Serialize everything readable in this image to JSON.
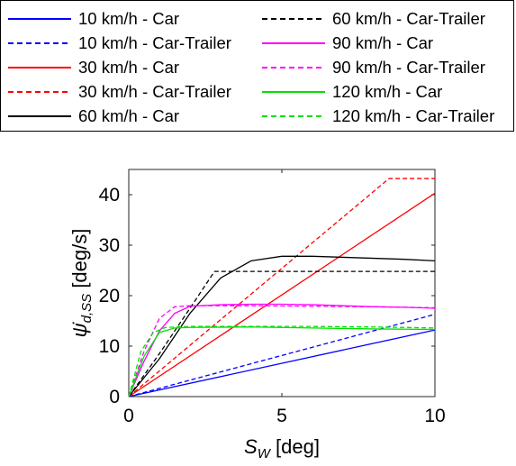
{
  "chart_data": {
    "type": "line",
    "xlabel_symbol": "S",
    "xlabel_sub": "W",
    "xlabel_unit": "[deg]",
    "ylabel_symbol": "ψ̇",
    "ylabel_sub": "d,SS",
    "ylabel_unit": "[deg/s]",
    "xlim": [
      0,
      10
    ],
    "ylim": [
      0,
      45
    ],
    "xticks": [
      "0",
      "5",
      "10"
    ],
    "yticks": [
      "0",
      "10",
      "20",
      "30",
      "40"
    ],
    "grid": false,
    "legend_placement": "top",
    "series": [
      {
        "name": "10 km/h - Car",
        "color": "#0000ff",
        "dash": false,
        "x": [
          0,
          10
        ],
        "y": [
          0,
          13.2
        ]
      },
      {
        "name": "10 km/h - Car-Trailer",
        "color": "#0000ff",
        "dash": true,
        "x": [
          0,
          10
        ],
        "y": [
          0,
          16.3
        ]
      },
      {
        "name": "30 km/h - Car",
        "color": "#ff0000",
        "dash": false,
        "x": [
          0,
          10
        ],
        "y": [
          0,
          40.3
        ]
      },
      {
        "name": "30 km/h - Car-Trailer",
        "color": "#ff0000",
        "dash": true,
        "x": [
          0,
          8.5,
          10
        ],
        "y": [
          0,
          43.2,
          43.2
        ]
      },
      {
        "name": "60 km/h - Car",
        "color": "#000000",
        "dash": false,
        "x": [
          0,
          1,
          2,
          3,
          4,
          5,
          6,
          7,
          8,
          9,
          10
        ],
        "y": [
          0,
          7.5,
          16.5,
          23.5,
          26.9,
          27.8,
          27.8,
          27.6,
          27.4,
          27.2,
          26.9
        ]
      },
      {
        "name": "60 km/h - Car-Trailer",
        "color": "#000000",
        "dash": true,
        "x": [
          0,
          1,
          2,
          2.8,
          3,
          10
        ],
        "y": [
          0,
          8.5,
          17.5,
          24.8,
          24.8,
          24.8
        ]
      },
      {
        "name": "90 km/h - Car",
        "color": "#ff00ff",
        "dash": false,
        "x": [
          0,
          0.5,
          1,
          1.5,
          2,
          3,
          4,
          5,
          6,
          7,
          8,
          9,
          10
        ],
        "y": [
          0,
          7,
          13,
          16.5,
          17.9,
          18.2,
          18.3,
          18.3,
          18.2,
          18.0,
          17.8,
          17.7,
          17.5
        ]
      },
      {
        "name": "90 km/h - Car-Trailer",
        "color": "#ff00ff",
        "dash": true,
        "x": [
          0,
          0.5,
          1,
          1.5,
          2,
          4,
          6,
          8,
          10
        ],
        "y": [
          0,
          9,
          15.5,
          17.8,
          18.0,
          18.0,
          17.9,
          17.8,
          17.6
        ]
      },
      {
        "name": "120 km/h - Car",
        "color": "#00e000",
        "dash": false,
        "x": [
          0,
          0.5,
          1,
          1.5,
          2,
          4,
          6,
          8,
          10
        ],
        "y": [
          0,
          8,
          12.7,
          13.6,
          13.7,
          13.8,
          13.6,
          13.4,
          13.3
        ]
      },
      {
        "name": "120 km/h - Car-Trailer",
        "color": "#00e000",
        "dash": true,
        "x": [
          0,
          0.4,
          0.8,
          1.2,
          2,
          4,
          6,
          8,
          10
        ],
        "y": [
          0,
          9,
          12.7,
          13.7,
          13.9,
          13.9,
          13.9,
          13.8,
          13.6
        ]
      }
    ]
  }
}
